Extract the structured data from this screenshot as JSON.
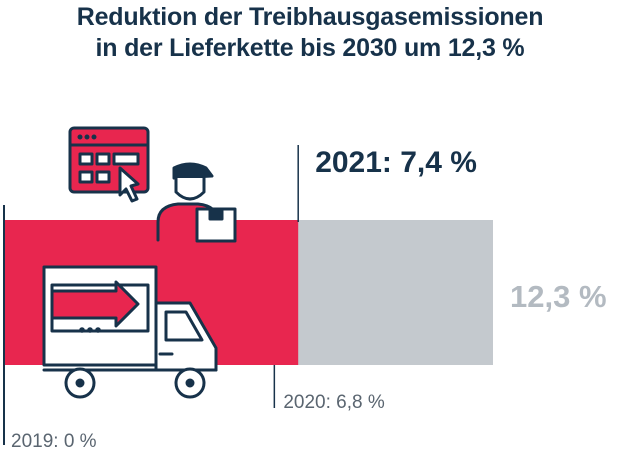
{
  "title_line1": "Reduktion der Treibhausgasemissionen",
  "title_line2": "in der Lieferkette bis 2030 um 12,3 %",
  "colors": {
    "accent": "#e8264f",
    "target": "#c4c9ce",
    "text_dark": "#17324a",
    "text_grey": "#5a6570",
    "target_label": "#b3bac1",
    "line": "#17324a"
  },
  "icons": [
    "browser-grid-icon",
    "cursor-icon",
    "delivery-person-icon",
    "parcel-icon",
    "delivery-truck-icon"
  ],
  "chart_data": {
    "type": "bar",
    "orientation": "horizontal",
    "axis_range": [
      0,
      12.3
    ],
    "markers": [
      {
        "label": "2019: 0 %",
        "value": 0
      },
      {
        "label": "2020: 6,8 %",
        "value": 6.8
      },
      {
        "label": "2021: 7,4 %",
        "value": 7.4
      }
    ],
    "target": {
      "label": "12,3 %",
      "value": 12.3
    },
    "achieved_value": 7.4
  }
}
